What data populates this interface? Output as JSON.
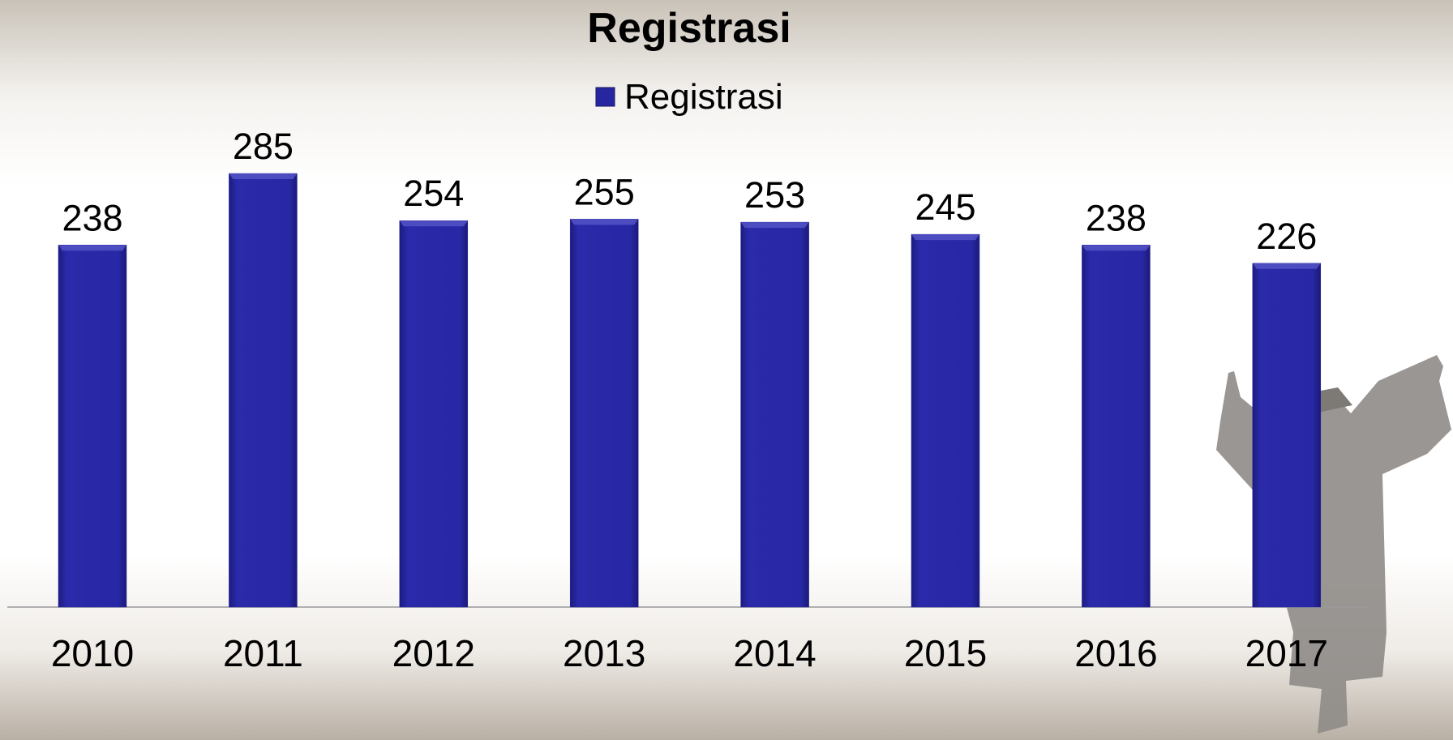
{
  "chart_data": {
    "type": "bar",
    "title": "Registrasi",
    "categories": [
      "2010",
      "2011",
      "2012",
      "2013",
      "2014",
      "2015",
      "2016",
      "2017"
    ],
    "series": [
      {
        "name": "Registrasi",
        "color": "#2626a0",
        "values": [
          238,
          285,
          254,
          255,
          253,
          245,
          238,
          226
        ]
      }
    ],
    "legend": "top",
    "data_labels": true,
    "grid": false
  }
}
